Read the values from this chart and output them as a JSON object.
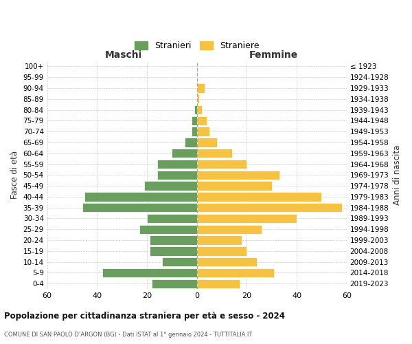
{
  "age_groups": [
    "0-4",
    "5-9",
    "10-14",
    "15-19",
    "20-24",
    "25-29",
    "30-34",
    "35-39",
    "40-44",
    "45-49",
    "50-54",
    "55-59",
    "60-64",
    "65-69",
    "70-74",
    "75-79",
    "80-84",
    "85-89",
    "90-94",
    "95-99",
    "100+"
  ],
  "birth_years": [
    "2019-2023",
    "2014-2018",
    "2009-2013",
    "2004-2008",
    "1999-2003",
    "1994-1998",
    "1989-1993",
    "1984-1988",
    "1979-1983",
    "1974-1978",
    "1969-1973",
    "1964-1968",
    "1959-1963",
    "1954-1958",
    "1949-1953",
    "1944-1948",
    "1939-1943",
    "1934-1938",
    "1929-1933",
    "1924-1928",
    "≤ 1923"
  ],
  "maschi": [
    18,
    38,
    14,
    19,
    19,
    23,
    20,
    46,
    45,
    21,
    16,
    16,
    10,
    5,
    2,
    2,
    1,
    0,
    0,
    0,
    0
  ],
  "femmine": [
    17,
    31,
    24,
    20,
    18,
    26,
    40,
    58,
    50,
    30,
    33,
    20,
    14,
    8,
    5,
    4,
    2,
    1,
    3,
    0,
    0
  ],
  "color_maschi": "#6a9e5e",
  "color_femmine": "#f5c242",
  "title": "Popolazione per cittadinanza straniera per età e sesso - 2024",
  "subtitle": "COMUNE DI SAN PAOLO D’ARGON (BG) - Dati ISTAT al 1° gennaio 2024 - TUTTITALIA.IT",
  "xlabel_left": "Maschi",
  "xlabel_right": "Femmine",
  "ylabel_left": "Fasce di età",
  "ylabel_right": "Anni di nascita",
  "legend_maschi": "Stranieri",
  "legend_femmine": "Straniere",
  "xlim": 60,
  "background_color": "#ffffff",
  "grid_color": "#cccccc"
}
